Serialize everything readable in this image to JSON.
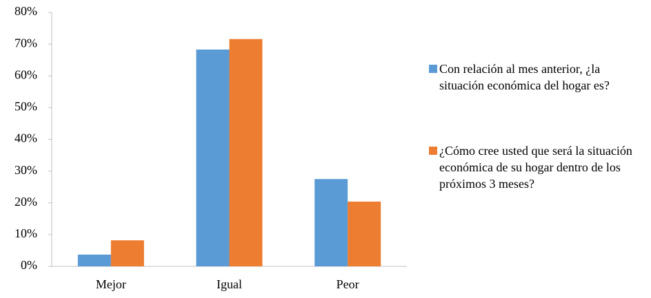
{
  "chart_data": {
    "type": "bar",
    "categories": [
      "Mejor",
      "Igual",
      "Peor"
    ],
    "series": [
      {
        "name": "Con relación al mes anterior, ¿la situación económica del hogar es?",
        "color": "#5b9bd5",
        "values": [
          3.7,
          68.3,
          27.5
        ]
      },
      {
        "name": "¿Cómo cree usted que será la situación económica de su hogar dentro de los próximos 3 meses?",
        "color": "#ed7d31",
        "values": [
          8.2,
          71.6,
          20.4
        ]
      }
    ],
    "ylim": [
      0,
      80
    ],
    "yticks": [
      {
        "value": 0,
        "label": "0%"
      },
      {
        "value": 10,
        "label": "10%"
      },
      {
        "value": 20,
        "label": "20%"
      },
      {
        "value": 30,
        "label": "30%"
      },
      {
        "value": 40,
        "label": "40%"
      },
      {
        "value": 50,
        "label": "50%"
      },
      {
        "value": 60,
        "label": "60%"
      },
      {
        "value": 70,
        "label": "70%"
      },
      {
        "value": 80,
        "label": "80%"
      }
    ],
    "grid": false
  }
}
